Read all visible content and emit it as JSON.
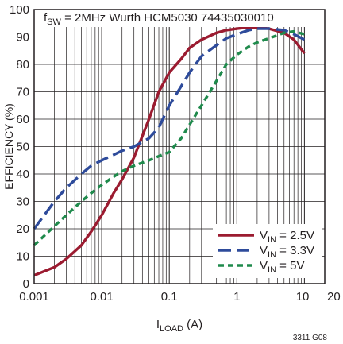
{
  "chart_data": {
    "type": "line",
    "annotation": {
      "main": "f",
      "sub": "SW",
      "rest": " = 2MHz Wurth HCM5030 74435030010"
    },
    "ylabel": "EFFICIENCY (%)",
    "xlabel": {
      "main": "I",
      "sub": "LOAD",
      "rest": " (A)"
    },
    "figure_id": "3311 G08",
    "x_scale": "log",
    "xlim": [
      0.001,
      20
    ],
    "ylim": [
      0,
      100
    ],
    "x_ticks": [
      {
        "value": 0.001,
        "label": "0.001"
      },
      {
        "value": 0.01,
        "label": "0.01"
      },
      {
        "value": 0.1,
        "label": "0.1"
      },
      {
        "value": 1,
        "label": "1"
      },
      {
        "value": 10,
        "label": "10"
      },
      {
        "value": 20,
        "label": "20"
      }
    ],
    "y_ticks": [
      0,
      10,
      20,
      30,
      40,
      50,
      60,
      70,
      80,
      90,
      100
    ],
    "grid": true,
    "legend_position": "bottom-right",
    "series": [
      {
        "legend": {
          "main": "V",
          "sub": "IN",
          "rest": " = 2.5V"
        },
        "color": "#9b1b30",
        "dash": "solid",
        "x": [
          0.001,
          0.002,
          0.003,
          0.005,
          0.007,
          0.01,
          0.015,
          0.02,
          0.03,
          0.05,
          0.07,
          0.1,
          0.15,
          0.2,
          0.3,
          0.5,
          0.7,
          1,
          1.5,
          2,
          3,
          5,
          7,
          10
        ],
        "y": [
          3,
          6,
          9,
          14,
          19,
          25,
          33,
          38,
          46,
          60,
          70,
          77,
          82,
          86,
          89,
          91.5,
          92.5,
          93,
          93.5,
          93.5,
          93,
          91.5,
          89,
          84
        ]
      },
      {
        "legend": {
          "main": "V",
          "sub": "IN",
          "rest": " = 3.3V"
        },
        "color": "#2e4b9b",
        "dash": "long",
        "x": [
          0.001,
          0.002,
          0.003,
          0.005,
          0.007,
          0.01,
          0.015,
          0.02,
          0.03,
          0.05,
          0.07,
          0.1,
          0.15,
          0.2,
          0.3,
          0.5,
          0.7,
          1,
          1.5,
          2,
          3,
          5,
          7,
          10
        ],
        "y": [
          20,
          30,
          35,
          40,
          43,
          45,
          47,
          48.5,
          50,
          53,
          57,
          65,
          72,
          77,
          83,
          87,
          89.5,
          91,
          92.5,
          93,
          93,
          92.5,
          91,
          89
        ]
      },
      {
        "legend": {
          "main": "V",
          "sub": "IN",
          "rest": " = 5V"
        },
        "color": "#1f8a4c",
        "dash": "short",
        "x": [
          0.001,
          0.002,
          0.003,
          0.005,
          0.007,
          0.01,
          0.015,
          0.02,
          0.03,
          0.05,
          0.07,
          0.1,
          0.15,
          0.2,
          0.3,
          0.5,
          0.7,
          1,
          1.5,
          2,
          3,
          5,
          7,
          10
        ],
        "y": [
          14,
          21,
          25,
          30,
          33,
          36,
          39,
          41,
          43,
          45,
          46.5,
          48,
          53,
          58,
          65,
          74,
          80,
          83.5,
          86.5,
          88,
          89.5,
          91.5,
          92,
          91
        ]
      }
    ]
  }
}
